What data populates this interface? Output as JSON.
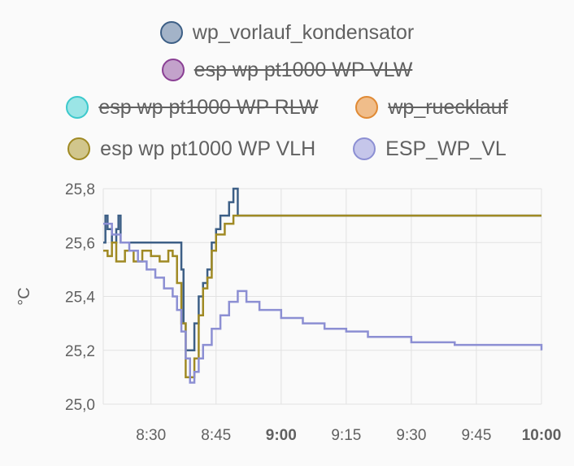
{
  "legend": [
    {
      "name": "wp_vorlauf_kondensator",
      "color": "#3d5f86",
      "fill": "#a3b3c8",
      "hidden": false
    },
    {
      "name": "esp wp pt1000 WP VLW",
      "color": "#8a3f94",
      "fill": "#c3a2cb",
      "hidden": true
    },
    {
      "name": "esp wp pt1000 WP RLW",
      "color": "#3dc9cc",
      "fill": "#9be5e6",
      "hidden": true
    },
    {
      "name": "wp_ruecklauf",
      "color": "#e08a35",
      "fill": "#f0bd8a",
      "hidden": true
    },
    {
      "name": "esp wp pt1000 WP VLH",
      "color": "#a08a24",
      "fill": "#d1c68c",
      "hidden": false
    },
    {
      "name": "ESP_WP_VL",
      "color": "#8c8fd3",
      "fill": "#c5c6ea",
      "hidden": false
    }
  ],
  "chart_data": {
    "type": "line",
    "ylabel": "°C",
    "ylim": [
      25.0,
      25.8
    ],
    "yticks": [
      "25,0",
      "25,2",
      "25,4",
      "25,6",
      "25,8"
    ],
    "xlim": [
      "8:19",
      "10:00"
    ],
    "xticks": [
      {
        "label": "8:30",
        "t": "8:30",
        "bold": false
      },
      {
        "label": "8:45",
        "t": "8:45",
        "bold": false
      },
      {
        "label": "9:00",
        "t": "9:00",
        "bold": true
      },
      {
        "label": "9:15",
        "t": "9:15",
        "bold": false
      },
      {
        "label": "9:30",
        "t": "9:30",
        "bold": false
      },
      {
        "label": "9:45",
        "t": "9:45",
        "bold": false
      },
      {
        "label": "10:00",
        "t": "10:00",
        "bold": true
      }
    ],
    "grid": true,
    "series": [
      {
        "name": "wp_vorlauf_kondensator",
        "color": "#3d5f86",
        "step": true,
        "points": [
          [
            "8:19",
            25.6
          ],
          [
            "8:19.5",
            25.7
          ],
          [
            "8:20",
            25.65
          ],
          [
            "8:21",
            25.6
          ],
          [
            "8:22",
            25.65
          ],
          [
            "8:22.5",
            25.7
          ],
          [
            "8:23",
            25.6
          ],
          [
            "8:37",
            25.5
          ],
          [
            "8:37.5",
            25.3
          ],
          [
            "8:38",
            25.2
          ],
          [
            "8:40",
            25.3
          ],
          [
            "8:41",
            25.4
          ],
          [
            "8:42",
            25.45
          ],
          [
            "8:43",
            25.5
          ],
          [
            "8:44",
            25.6
          ],
          [
            "8:45",
            25.65
          ],
          [
            "8:46",
            25.7
          ],
          [
            "8:48",
            25.75
          ],
          [
            "8:49",
            25.8
          ],
          [
            "8:50",
            25.7
          ],
          [
            "10:00",
            25.7
          ]
        ]
      },
      {
        "name": "esp wp pt1000 WP VLH",
        "color": "#a08a24",
        "step": true,
        "points": [
          [
            "8:19",
            25.57
          ],
          [
            "8:20",
            25.55
          ],
          [
            "8:21",
            25.6
          ],
          [
            "8:22",
            25.53
          ],
          [
            "8:24",
            25.57
          ],
          [
            "8:26",
            25.53
          ],
          [
            "8:28",
            25.57
          ],
          [
            "8:30",
            25.55
          ],
          [
            "8:32",
            25.53
          ],
          [
            "8:34",
            25.57
          ],
          [
            "8:35",
            25.55
          ],
          [
            "8:36",
            25.45
          ],
          [
            "8:37",
            25.3
          ],
          [
            "8:38",
            25.1
          ],
          [
            "8:39",
            25.1
          ],
          [
            "8:40",
            25.17
          ],
          [
            "8:41",
            25.33
          ],
          [
            "8:42",
            25.43
          ],
          [
            "8:43",
            25.47
          ],
          [
            "8:44",
            25.57
          ],
          [
            "8:45",
            25.63
          ],
          [
            "8:47",
            25.67
          ],
          [
            "8:49",
            25.7
          ],
          [
            "8:52",
            25.7
          ],
          [
            "9:00",
            25.7
          ],
          [
            "9:15",
            25.7
          ],
          [
            "9:30",
            25.7
          ],
          [
            "9:45",
            25.7
          ],
          [
            "10:00",
            25.7
          ]
        ]
      },
      {
        "name": "ESP_WP_VL",
        "color": "#8c8fd3",
        "step": true,
        "points": [
          [
            "8:19",
            25.67
          ],
          [
            "8:21",
            25.63
          ],
          [
            "8:23",
            25.6
          ],
          [
            "8:25",
            25.57
          ],
          [
            "8:27",
            25.53
          ],
          [
            "8:29",
            25.5
          ],
          [
            "8:31",
            25.47
          ],
          [
            "8:33",
            25.43
          ],
          [
            "8:35",
            25.4
          ],
          [
            "8:36",
            25.35
          ],
          [
            "8:37",
            25.27
          ],
          [
            "8:38",
            25.17
          ],
          [
            "8:39",
            25.08
          ],
          [
            "8:40",
            25.12
          ],
          [
            "8:41",
            25.17
          ],
          [
            "8:42",
            25.22
          ],
          [
            "8:44",
            25.28
          ],
          [
            "8:46",
            25.33
          ],
          [
            "8:48",
            25.38
          ],
          [
            "8:50",
            25.42
          ],
          [
            "8:52",
            25.38
          ],
          [
            "8:55",
            25.35
          ],
          [
            "9:00",
            25.32
          ],
          [
            "9:05",
            25.3
          ],
          [
            "9:10",
            25.28
          ],
          [
            "9:15",
            25.27
          ],
          [
            "9:20",
            25.25
          ],
          [
            "9:25",
            25.25
          ],
          [
            "9:30",
            25.23
          ],
          [
            "9:40",
            25.22
          ],
          [
            "9:50",
            25.22
          ],
          [
            "10:00",
            25.2
          ]
        ]
      }
    ]
  }
}
